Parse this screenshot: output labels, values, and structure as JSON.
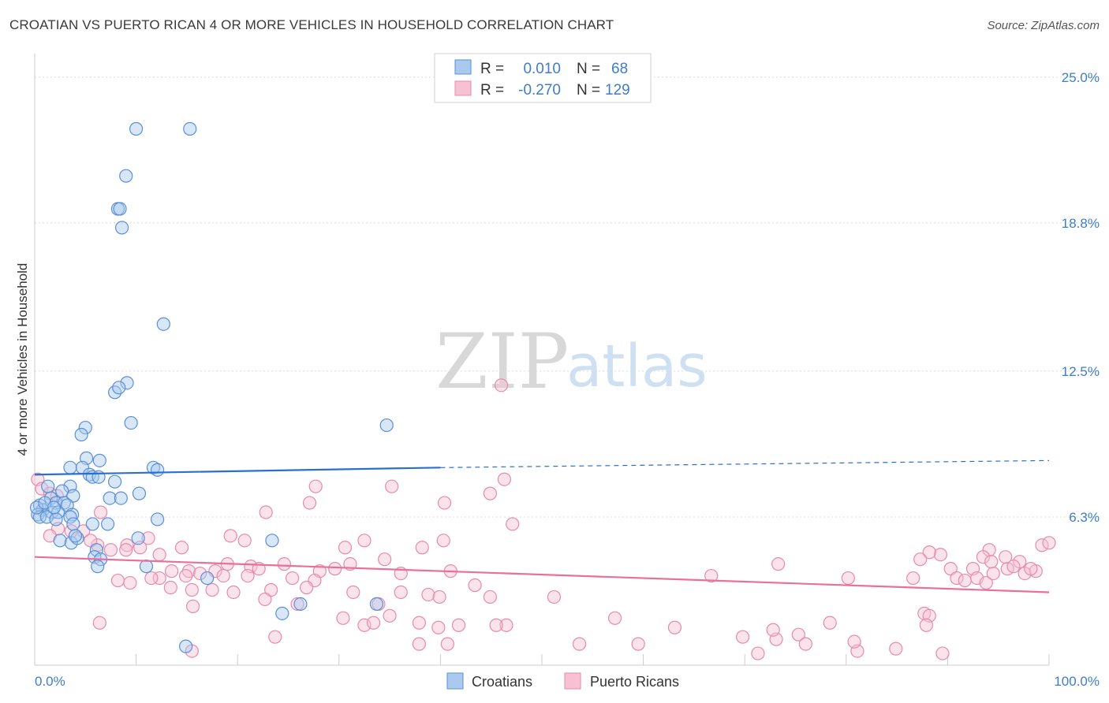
{
  "title": "CROATIAN VS PUERTO RICAN 4 OR MORE VEHICLES IN HOUSEHOLD CORRELATION CHART",
  "source": "Source: ZipAtlas.com",
  "watermark": {
    "zip": "ZIP",
    "atlas": "atlas"
  },
  "colors": {
    "blue_fill": "#a9c9ef",
    "blue_stroke": "#5a8fd6",
    "blue_line": "#2a6fd0",
    "pink_fill": "#f6c1d3",
    "pink_stroke": "#e88aa9",
    "pink_line": "#e8709a",
    "tick_label": "#3f7dc8"
  },
  "legend": {
    "row1": {
      "r_label": "R = ",
      "r_value": "0.010",
      "n_label": "N = ",
      "n_value": "68"
    },
    "row2": {
      "r_label": "R = ",
      "r_value": "-0.270",
      "n_label": "N = ",
      "n_value": "129"
    }
  },
  "chart_data": {
    "type": "scatter",
    "title": "CROATIAN VS PUERTO RICAN 4 OR MORE VEHICLES IN HOUSEHOLD CORRELATION CHART",
    "xlabel": "",
    "ylabel": "4 or more Vehicles in Household",
    "xlim": [
      0,
      100
    ],
    "ylim": [
      0,
      26
    ],
    "x_tick_labels": [
      "0.0%",
      "100.0%"
    ],
    "y_ticks": [
      6.3,
      12.5,
      18.8,
      25.0
    ],
    "y_tick_labels": [
      "6.3%",
      "12.5%",
      "18.8%",
      "25.0%"
    ],
    "grid": true,
    "legend_position": "top-center",
    "series": [
      {
        "name": "Croatians",
        "trend": {
          "x": [
            0,
            40
          ],
          "y": [
            8.1,
            8.4
          ],
          "dashed_to": [
            100,
            8.7
          ]
        },
        "points": [
          [
            10,
            22.8
          ],
          [
            15.3,
            22.8
          ],
          [
            9,
            20.8
          ],
          [
            8.2,
            19.4
          ],
          [
            8.4,
            19.4
          ],
          [
            8.6,
            18.6
          ],
          [
            12.7,
            14.5
          ],
          [
            9.1,
            12.0
          ],
          [
            7.9,
            11.6
          ],
          [
            8.3,
            11.8
          ],
          [
            9.5,
            10.3
          ],
          [
            34.7,
            10.2
          ],
          [
            5,
            10.1
          ],
          [
            4.6,
            9.8
          ],
          [
            5.1,
            8.8
          ],
          [
            6.4,
            8.7
          ],
          [
            3.5,
            8.4
          ],
          [
            4.7,
            8.4
          ],
          [
            11.7,
            8.4
          ],
          [
            12.1,
            8.3
          ],
          [
            5.4,
            8.1
          ],
          [
            5.7,
            8.0
          ],
          [
            6.3,
            8.0
          ],
          [
            7.9,
            7.8
          ],
          [
            1.3,
            7.6
          ],
          [
            3.5,
            7.6
          ],
          [
            2.7,
            7.4
          ],
          [
            10.3,
            7.3
          ],
          [
            3.8,
            7.2
          ],
          [
            1.6,
            7.1
          ],
          [
            7.4,
            7.1
          ],
          [
            8.5,
            7.1
          ],
          [
            2.1,
            6.9
          ],
          [
            2.9,
            6.9
          ],
          [
            3.2,
            6.8
          ],
          [
            0.5,
            6.8
          ],
          [
            0.8,
            6.6
          ],
          [
            1.7,
            6.5
          ],
          [
            2.3,
            6.5
          ],
          [
            3.7,
            6.4
          ],
          [
            0.3,
            6.4
          ],
          [
            0.5,
            6.3
          ],
          [
            1.2,
            6.3
          ],
          [
            3.5,
            6.3
          ],
          [
            2.1,
            6.2
          ],
          [
            12.1,
            6.2
          ],
          [
            5.7,
            6.0
          ],
          [
            7.2,
            6.0
          ],
          [
            3.8,
            6.0
          ],
          [
            10.2,
            5.4
          ],
          [
            2.5,
            5.3
          ],
          [
            3.6,
            5.2
          ],
          [
            23.4,
            5.3
          ],
          [
            4.2,
            5.4
          ],
          [
            6.1,
            4.9
          ],
          [
            5.9,
            4.6
          ],
          [
            6.5,
            4.5
          ],
          [
            11,
            4.2
          ],
          [
            6.2,
            4.2
          ],
          [
            17,
            3.7
          ],
          [
            26.2,
            2.6
          ],
          [
            24.4,
            2.2
          ],
          [
            33.7,
            2.6
          ],
          [
            14.9,
            0.8
          ],
          [
            0.2,
            6.7
          ],
          [
            1.0,
            6.9
          ],
          [
            1.9,
            6.7
          ],
          [
            4.0,
            5.5
          ]
        ]
      },
      {
        "name": "Puerto Ricans",
        "trend": {
          "x": [
            0,
            100
          ],
          "y": [
            4.6,
            3.1
          ]
        },
        "points": [
          [
            46,
            11.9
          ],
          [
            0.3,
            7.9
          ],
          [
            0.7,
            7.5
          ],
          [
            1.5,
            7.3
          ],
          [
            2.2,
            7.2
          ],
          [
            35.2,
            7.6
          ],
          [
            46.3,
            7.9
          ],
          [
            27.7,
            7.6
          ],
          [
            44.9,
            7.3
          ],
          [
            40.4,
            6.9
          ],
          [
            27.1,
            6.9
          ],
          [
            6.5,
            6.5
          ],
          [
            22.8,
            6.5
          ],
          [
            47.1,
            6.0
          ],
          [
            2.3,
            5.8
          ],
          [
            19.3,
            5.5
          ],
          [
            11.2,
            5.4
          ],
          [
            20.7,
            5.3
          ],
          [
            32.5,
            5.3
          ],
          [
            40.3,
            5.3
          ],
          [
            6.2,
            5.1
          ],
          [
            9.1,
            5.1
          ],
          [
            10.4,
            5.0
          ],
          [
            14.5,
            5.0
          ],
          [
            38.2,
            5.0
          ],
          [
            30.6,
            5.0
          ],
          [
            12.3,
            4.7
          ],
          [
            9.0,
            4.9
          ],
          [
            1.5,
            5.5
          ],
          [
            3.6,
            5.7
          ],
          [
            4.8,
            5.7
          ],
          [
            5.5,
            5.3
          ],
          [
            7.5,
            4.9
          ],
          [
            19,
            4.3
          ],
          [
            15.2,
            4.0
          ],
          [
            13.5,
            4.0
          ],
          [
            17.8,
            4.0
          ],
          [
            21.3,
            4.2
          ],
          [
            22.1,
            4.1
          ],
          [
            24.6,
            4.3
          ],
          [
            28.1,
            4.0
          ],
          [
            29.6,
            4.1
          ],
          [
            31.1,
            4.3
          ],
          [
            34.5,
            4.5
          ],
          [
            12.3,
            3.7
          ],
          [
            8.2,
            3.6
          ],
          [
            11.5,
            3.7
          ],
          [
            16.3,
            3.9
          ],
          [
            14.9,
            3.8
          ],
          [
            18.6,
            3.8
          ],
          [
            21,
            3.8
          ],
          [
            25.4,
            3.7
          ],
          [
            27.6,
            3.6
          ],
          [
            9.4,
            3.5
          ],
          [
            13.4,
            3.3
          ],
          [
            15.5,
            3.2
          ],
          [
            17.5,
            3.2
          ],
          [
            19.6,
            3.1
          ],
          [
            23.3,
            3.2
          ],
          [
            26.8,
            3.3
          ],
          [
            31.4,
            3.1
          ],
          [
            36.1,
            3.1
          ],
          [
            36.1,
            3.9
          ],
          [
            38.8,
            3.0
          ],
          [
            43.4,
            3.4
          ],
          [
            39.9,
            2.9
          ],
          [
            44.9,
            2.9
          ],
          [
            51.2,
            2.9
          ],
          [
            33.9,
            2.6
          ],
          [
            25.9,
            2.6
          ],
          [
            15.6,
            2.5
          ],
          [
            22.7,
            2.8
          ],
          [
            35,
            2.1
          ],
          [
            30.4,
            2.0
          ],
          [
            37.9,
            1.8
          ],
          [
            41.8,
            1.7
          ],
          [
            32.5,
            1.7
          ],
          [
            33.4,
            1.8
          ],
          [
            46.5,
            1.7
          ],
          [
            57.2,
            2.0
          ],
          [
            6.4,
            1.8
          ],
          [
            23.7,
            1.2
          ],
          [
            45.5,
            1.7
          ],
          [
            39.8,
            1.6
          ],
          [
            63.1,
            1.6
          ],
          [
            66.7,
            3.8
          ],
          [
            73.3,
            4.3
          ],
          [
            80.2,
            3.7
          ],
          [
            75.3,
            1.3
          ],
          [
            73.1,
            1.1
          ],
          [
            69.8,
            1.2
          ],
          [
            71.3,
            0.5
          ],
          [
            72.8,
            1.5
          ],
          [
            76,
            0.9
          ],
          [
            78.4,
            1.8
          ],
          [
            81.1,
            0.6
          ],
          [
            87.7,
            2.2
          ],
          [
            88.2,
            2.1
          ],
          [
            87.9,
            1.7
          ],
          [
            89.3,
            4.7
          ],
          [
            88.2,
            4.8
          ],
          [
            90.3,
            4.1
          ],
          [
            92.5,
            4.1
          ],
          [
            90.9,
            3.7
          ],
          [
            92.9,
            3.7
          ],
          [
            93.8,
            3.5
          ],
          [
            94.5,
            3.9
          ],
          [
            95.9,
            4.1
          ],
          [
            97.6,
            3.9
          ],
          [
            98.7,
            4.0
          ],
          [
            95.7,
            4.6
          ],
          [
            97.1,
            4.4
          ],
          [
            98.2,
            4.1
          ],
          [
            99.3,
            5.1
          ],
          [
            100,
            5.2
          ],
          [
            94.1,
            4.9
          ],
          [
            93.5,
            4.6
          ],
          [
            86.6,
            3.7
          ],
          [
            84.9,
            0.7
          ],
          [
            89.5,
            0.5
          ],
          [
            94.3,
            4.4
          ],
          [
            96.5,
            4.2
          ],
          [
            91.7,
            3.6
          ],
          [
            87.3,
            4.5
          ],
          [
            41,
            4.0
          ],
          [
            15.5,
            0.6
          ],
          [
            59.5,
            0.9
          ],
          [
            53.7,
            0.9
          ],
          [
            40.7,
            0.9
          ],
          [
            37.9,
            0.9
          ],
          [
            80.8,
            1.0
          ]
        ]
      }
    ]
  }
}
